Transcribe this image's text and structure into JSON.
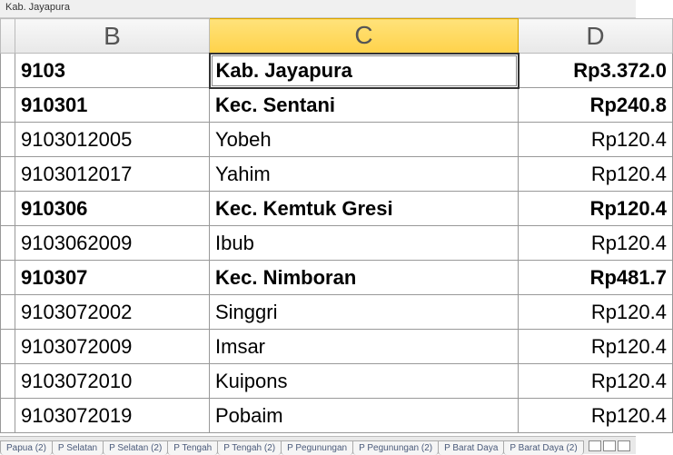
{
  "namebox": "Kab. Jayapura",
  "columns": {
    "B": "B",
    "C": "C",
    "D": "D"
  },
  "selected_column": "C",
  "rows": [
    {
      "bold": true,
      "selected": true,
      "code": "9103",
      "name": "Kab. Jayapura",
      "amt": "Rp3.372.0"
    },
    {
      "bold": true,
      "selected": false,
      "code": "910301",
      "name": "Kec. Sentani",
      "amt": "Rp240.8"
    },
    {
      "bold": false,
      "selected": false,
      "code": "9103012005",
      "name": "Yobeh",
      "amt": "Rp120.4"
    },
    {
      "bold": false,
      "selected": false,
      "code": "9103012017",
      "name": "Yahim",
      "amt": "Rp120.4"
    },
    {
      "bold": true,
      "selected": false,
      "code": "910306",
      "name": "Kec. Kemtuk Gresi",
      "amt": "Rp120.4"
    },
    {
      "bold": false,
      "selected": false,
      "code": "9103062009",
      "name": "Ibub",
      "amt": "Rp120.4"
    },
    {
      "bold": true,
      "selected": false,
      "code": "910307",
      "name": "Kec. Nimboran",
      "amt": "Rp481.7"
    },
    {
      "bold": false,
      "selected": false,
      "code": "9103072002",
      "name": "Singgri",
      "amt": "Rp120.4"
    },
    {
      "bold": false,
      "selected": false,
      "code": "9103072009",
      "name": "Imsar",
      "amt": "Rp120.4"
    },
    {
      "bold": false,
      "selected": false,
      "code": "9103072010",
      "name": "Kuipons",
      "amt": "Rp120.4"
    },
    {
      "bold": false,
      "selected": false,
      "code": "9103072019",
      "name": "Pobaim",
      "amt": "Rp120.4"
    }
  ],
  "tabs": [
    "Papua (2)",
    "P Selatan",
    "P Selatan (2)",
    "P Tengah",
    "P Tengah (2)",
    "P Pegunungan",
    "P Pegunungan (2)",
    "P Barat Daya",
    "P Barat Daya (2)"
  ],
  "colors": {
    "header_sel_top": "#ffe27a",
    "header_sel_bottom": "#ffd24a",
    "grid_border": "#999999"
  }
}
